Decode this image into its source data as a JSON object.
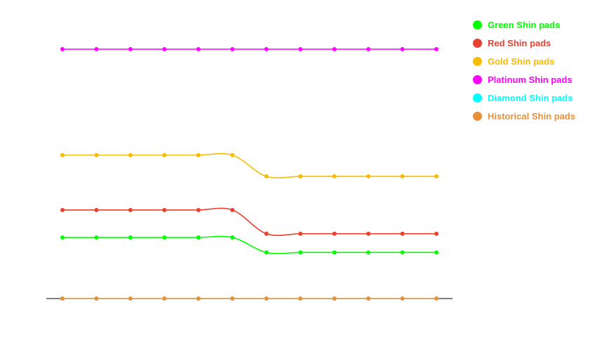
{
  "chart_data": {
    "type": "line",
    "x": [
      1,
      2,
      3,
      4,
      5,
      6,
      7,
      8,
      9,
      10,
      11,
      12
    ],
    "ylim": [
      0,
      100
    ],
    "grid": false,
    "legend_position": "right",
    "series": [
      {
        "name": "Green Shin pads",
        "color": "#00ff00",
        "values": [
          24.5,
          24.5,
          24.5,
          24.5,
          24.5,
          24.5,
          18.5,
          18.5,
          18.5,
          18.5,
          18.5,
          18.5
        ]
      },
      {
        "name": "Red Shin pads",
        "color": "#e8412f",
        "values": [
          35.5,
          35.5,
          35.5,
          35.5,
          35.5,
          35.5,
          26,
          26,
          26,
          26,
          26,
          26
        ]
      },
      {
        "name": "Gold Shin pads",
        "color": "#f5bc06",
        "values": [
          57.5,
          57.5,
          57.5,
          57.5,
          57.5,
          57.5,
          49,
          49,
          49,
          49,
          49,
          49
        ]
      },
      {
        "name": "Platinum Shin pads",
        "color": "#ff00ff",
        "values": [
          100,
          100,
          100,
          100,
          100,
          100,
          100,
          100,
          100,
          100,
          100,
          100
        ]
      },
      {
        "name": "Diamond Shin pads",
        "color": "#00ffff",
        "values": [
          0,
          0,
          0,
          0,
          0,
          0,
          0,
          0,
          0,
          0,
          0,
          0
        ]
      },
      {
        "name": "Historical Shin pads",
        "color": "#e8913a",
        "values": [
          0,
          0,
          0,
          0,
          0,
          0,
          0,
          0,
          0,
          0,
          0,
          0
        ]
      }
    ]
  }
}
